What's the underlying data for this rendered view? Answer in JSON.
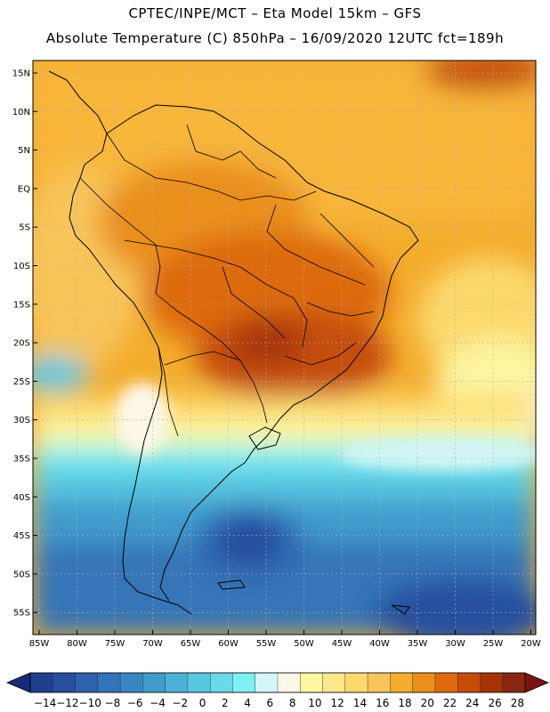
{
  "title": {
    "line1": "CPTEC/INPE/MCT – Eta Model 15km – GFS",
    "line2": "Absolute Temperature (C) 850hPa – 16/09/2020 12UTC fct=189h"
  },
  "map": {
    "region": "South America",
    "lat_labels": [
      "15N",
      "10N",
      "5N",
      "EQ",
      "5S",
      "10S",
      "15S",
      "20S",
      "25S",
      "30S",
      "35S",
      "40S",
      "45S",
      "50S",
      "55S"
    ],
    "lon_labels": [
      "85W",
      "80W",
      "75W",
      "70W",
      "65W",
      "60W",
      "55W",
      "50W",
      "45W",
      "40W",
      "35W",
      "30W",
      "25W",
      "20W"
    ]
  },
  "colorbar": {
    "labels": [
      "-14",
      "-12",
      "-10",
      "-8",
      "-6",
      "-4",
      "-2",
      "0",
      "2",
      "4",
      "6",
      "8",
      "10",
      "12",
      "14",
      "16",
      "18",
      "20",
      "22",
      "24",
      "26",
      "28"
    ],
    "colors": [
      "#1f3f8f",
      "#27509f",
      "#2f62ad",
      "#3474b8",
      "#3a86c2",
      "#419bcc",
      "#4cb2d7",
      "#58c8e2",
      "#6ad9ea",
      "#7ef0f2",
      "#d3f6f6",
      "#fdf7e8",
      "#fdf5a0",
      "#fce88a",
      "#fcd96d",
      "#f8c55a",
      "#f4ad2d",
      "#ea8f1c",
      "#dd6a0d",
      "#c54d08",
      "#a63407",
      "#8a2611"
    ],
    "under_color": "#1a2a78",
    "over_color": "#7a1410"
  }
}
